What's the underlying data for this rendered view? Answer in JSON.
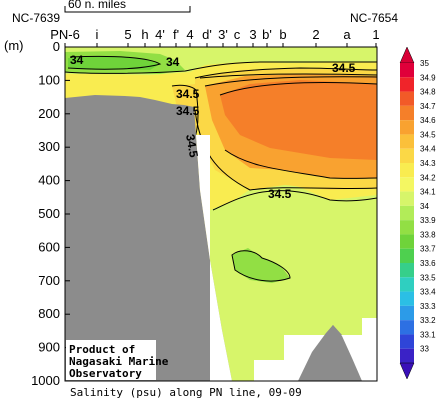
{
  "chart_data": {
    "type": "heatmap",
    "title": "Salinity (psu) along PN line, 09-09",
    "ylabel": "(m)",
    "ylim": [
      0,
      1000
    ],
    "y_ticks": [
      0,
      100,
      200,
      300,
      400,
      500,
      600,
      700,
      800,
      900,
      1000
    ],
    "stations": [
      "PN-6",
      "i",
      "5",
      "h",
      "4'",
      "f'",
      "4",
      "d'",
      "3'",
      "c",
      "3",
      "b'",
      "b",
      "2",
      "a",
      "1"
    ],
    "end_labels": {
      "left": "NC-7639",
      "right": "NC-7654"
    },
    "scale_bar_label": "60 n. miles",
    "colorbar": {
      "ticks": [
        "35",
        "34.9",
        "34.8",
        "34.7",
        "34.6",
        "34.5",
        "34.4",
        "34.3",
        "34.2",
        "34.1",
        "34",
        "33.9",
        "33.8",
        "33.7",
        "33.6",
        "33.5",
        "33.4",
        "33.3",
        "33.2",
        "33.1",
        "33"
      ],
      "colors": [
        "#e0003a",
        "#f0242a",
        "#f25a28",
        "#f57f29",
        "#f9a230",
        "#fbc03a",
        "#fbd846",
        "#f9ec50",
        "#f4f762",
        "#d7f56a",
        "#b2ec58",
        "#92df44",
        "#6fd33a",
        "#4ed04f",
        "#36cf8a",
        "#2fcfc0",
        "#2bbfe5",
        "#2c9be8",
        "#2d70e3",
        "#2f45d8",
        "#3a22c6"
      ]
    },
    "contour_labels": [
      "34",
      "34",
      "34.5",
      "34.5",
      "34.5",
      "34.5",
      "34.5"
    ],
    "annotations": [
      "Product of",
      "Nagasaki Marine",
      "Observatory"
    ]
  }
}
